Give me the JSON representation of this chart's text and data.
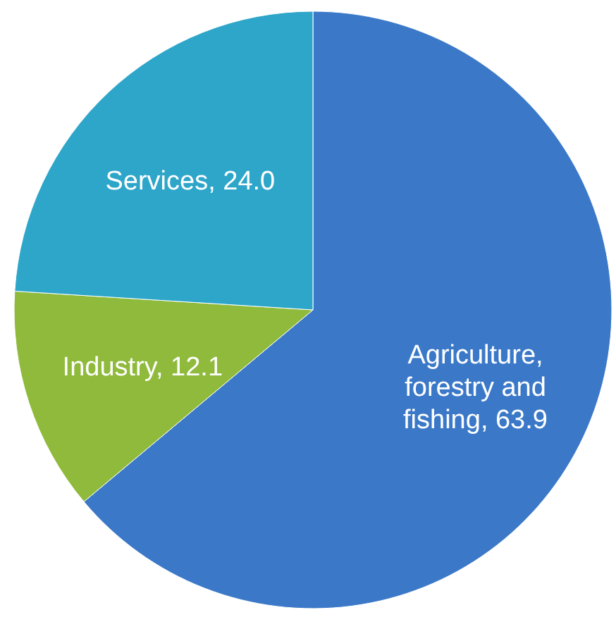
{
  "chart_data": {
    "type": "pie",
    "categories": [
      "Agriculture, forestry and fishing",
      "Industry",
      "Services"
    ],
    "values": [
      63.9,
      12.1,
      24.0
    ],
    "colors": [
      "#3b79c8",
      "#8fba3c",
      "#2ea6c9"
    ],
    "value_labels": [
      "63.9",
      "12.1",
      "24.0"
    ]
  }
}
